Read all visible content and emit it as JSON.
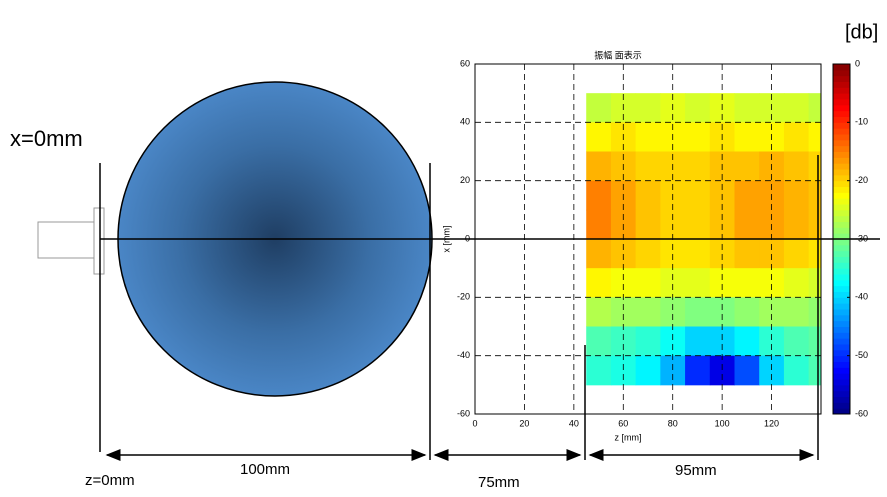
{
  "annotations": {
    "x0": "x=0mm",
    "z0": "z=0mm",
    "d1": "100mm",
    "d2": "75mm",
    "d3": "95mm",
    "unit": "[db]"
  },
  "chart_data": {
    "type": "heatmap",
    "title": "振幅 面表示",
    "xlabel": "z [mm]",
    "ylabel": "x [mm]",
    "xlim": [
      0,
      140
    ],
    "ylim": [
      -60,
      60
    ],
    "xticks": [
      0,
      20,
      40,
      60,
      80,
      100,
      120
    ],
    "yticks": [
      -60,
      -40,
      -20,
      0,
      20,
      40,
      60
    ],
    "grid": true,
    "x_edges": [
      45,
      55,
      65,
      75,
      85,
      95,
      105,
      115,
      125,
      135,
      140
    ],
    "y_edges": [
      50,
      40,
      30,
      20,
      10,
      0,
      -10,
      -20,
      -30,
      -40,
      -50
    ],
    "z": [
      [
        -26,
        -25,
        -25,
        -24,
        -25,
        -24,
        -25,
        -25,
        -25,
        -26
      ],
      [
        -22,
        -21,
        -22,
        -22,
        -22,
        -21,
        -22,
        -22,
        -21,
        -22
      ],
      [
        -18,
        -19,
        -20,
        -20,
        -20,
        -19,
        -19,
        -18,
        -19,
        -20
      ],
      [
        -15,
        -17,
        -19,
        -20,
        -20,
        -19,
        -17,
        -17,
        -18,
        -19
      ],
      [
        -15,
        -17,
        -19,
        -20,
        -20,
        -19,
        -17,
        -17,
        -18,
        -19
      ],
      [
        -18,
        -19,
        -20,
        -21,
        -21,
        -20,
        -19,
        -19,
        -20,
        -21
      ],
      [
        -22,
        -23,
        -23,
        -24,
        -24,
        -23,
        -23,
        -23,
        -24,
        -25
      ],
      [
        -27,
        -28,
        -28,
        -29,
        -30,
        -30,
        -29,
        -28,
        -28,
        -29
      ],
      [
        -33,
        -34,
        -35,
        -37,
        -40,
        -40,
        -38,
        -35,
        -33,
        -32
      ],
      [
        -35,
        -36,
        -38,
        -42,
        -50,
        -54,
        -48,
        -40,
        -35,
        -33
      ]
    ],
    "clim": [
      -60,
      0
    ],
    "cticks": [
      0,
      -10,
      -20,
      -30,
      -40,
      -50,
      -60
    ],
    "colormap": "jet"
  }
}
